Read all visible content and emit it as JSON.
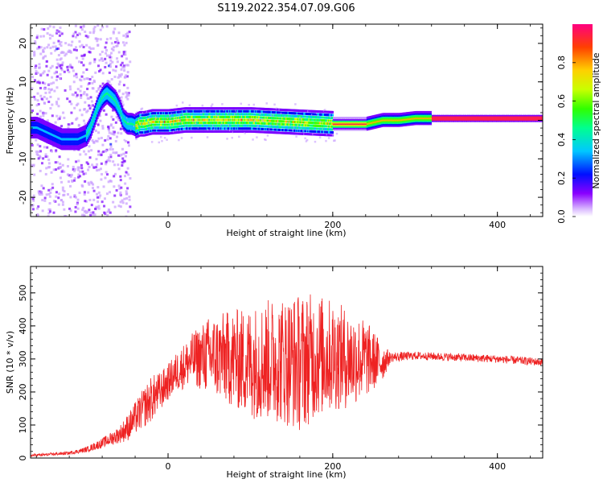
{
  "title": "S119.2022.354.07.09.G06",
  "chart_data": [
    {
      "type": "heatmap",
      "xlabel": "Height of straight line (km)",
      "ylabel": "Frequency (Hz)",
      "xlim": [
        -167,
        455
      ],
      "ylim": [
        -25,
        25
      ],
      "xticks": [
        0,
        200,
        400
      ],
      "yticks": [
        -20,
        -10,
        0,
        10,
        20
      ],
      "colorbar": {
        "label": "Normalized spectral amplitude",
        "range": [
          0,
          1
        ],
        "ticks": [
          "0.0",
          "0.2",
          "0.4",
          "0.6",
          "0.8"
        ],
        "colormap": "gist_rainbow_r",
        "colors": [
          "#ffffff",
          "#c79bff",
          "#7a00ff",
          "#0010ff",
          "#00c0ff",
          "#00ff80",
          "#40ff00",
          "#c8ff00",
          "#ffb000",
          "#ff2050"
        ]
      },
      "ridge": {
        "description": "frequency of peak spectral amplitude vs height",
        "x": [
          -160,
          -150,
          -140,
          -130,
          -120,
          -110,
          -100,
          -95,
          -90,
          -85,
          -80,
          -75,
          -70,
          -65,
          -60,
          -55,
          -50,
          -45,
          -40,
          -35,
          -30,
          -20,
          -10,
          0,
          20,
          50,
          100,
          150,
          200,
          240,
          260,
          280,
          300,
          330,
          400,
          455
        ],
        "y": [
          -2,
          -3,
          -4,
          -5,
          -5,
          -5,
          -4,
          -2,
          1,
          4,
          6,
          7,
          6,
          5,
          3,
          0,
          -1,
          -1,
          -1.5,
          -1,
          -1,
          -0.5,
          -0.5,
          -0.5,
          0,
          0,
          0,
          -0.5,
          -1,
          -1,
          0,
          0,
          0.5,
          0.5,
          0.5,
          0.5
        ]
      }
    },
    {
      "type": "line",
      "xlabel": "Height of straight line (km)",
      "ylabel": "SNR (10 * v/v)",
      "xlim": [
        -167,
        455
      ],
      "ylim": [
        0,
        580
      ],
      "xticks": [
        0,
        200,
        400
      ],
      "yticks": [
        0,
        100,
        200,
        300,
        400,
        500
      ],
      "color": "#ee2222",
      "series": [
        {
          "description": "SNR envelope: center and half-width of oscillation",
          "x": [
            -167,
            -150,
            -120,
            -100,
            -80,
            -60,
            -50,
            -40,
            -30,
            -20,
            -10,
            0,
            10,
            20,
            30,
            50,
            80,
            100,
            130,
            160,
            180,
            200,
            220,
            240,
            260,
            270,
            300,
            350,
            400,
            455
          ],
          "center": [
            8,
            10,
            15,
            25,
            45,
            70,
            90,
            120,
            150,
            180,
            200,
            230,
            260,
            280,
            300,
            310,
            300,
            290,
            300,
            290,
            310,
            310,
            300,
            300,
            290,
            305,
            310,
            305,
            300,
            290
          ],
          "amplitude": [
            4,
            4,
            5,
            8,
            15,
            25,
            40,
            50,
            60,
            70,
            60,
            55,
            60,
            70,
            80,
            120,
            150,
            170,
            190,
            210,
            190,
            170,
            150,
            120,
            60,
            15,
            12,
            12,
            12,
            12
          ]
        }
      ]
    }
  ]
}
